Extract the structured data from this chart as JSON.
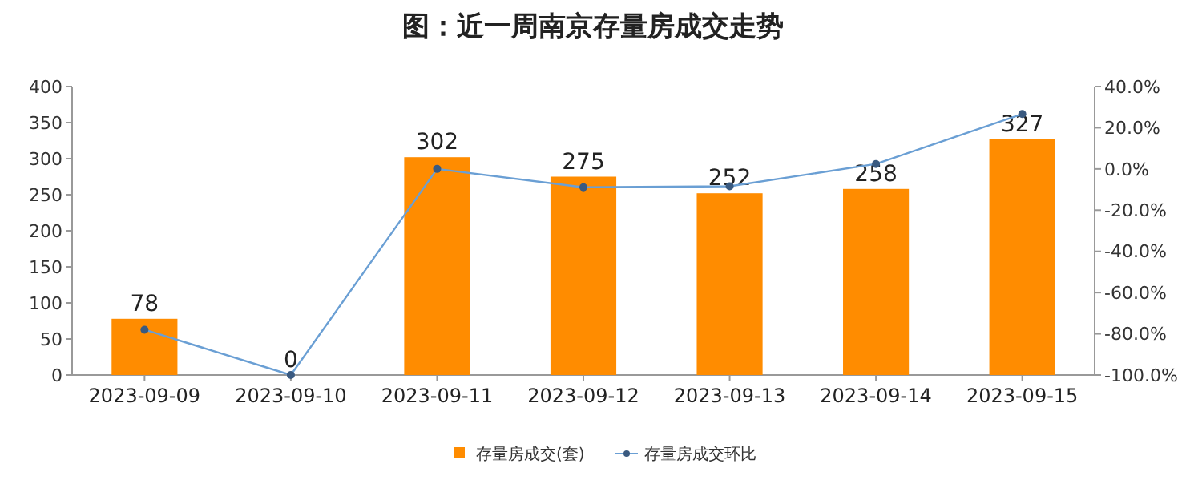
{
  "chart_data": {
    "type": "bar",
    "title": "图：近一周南京存量房成交走势",
    "categories": [
      "2023-09-09",
      "2023-09-10",
      "2023-09-11",
      "2023-09-12",
      "2023-09-13",
      "2023-09-14",
      "2023-09-15"
    ],
    "series": [
      {
        "name": "存量房成交(套)",
        "color": "#ff8c00",
        "values": [
          78,
          0,
          302,
          275,
          252,
          258,
          327
        ],
        "value_labels": [
          "78",
          "0",
          "302",
          "275",
          "252",
          "258",
          "327"
        ]
      },
      {
        "name": "存量房成交环比",
        "type": "line",
        "axis": "y2",
        "color": "#6a9fd4",
        "values": [
          -78,
          -100,
          0,
          -8.9,
          -8.4,
          2.4,
          26.7
        ]
      }
    ],
    "ylim": [
      0,
      400
    ],
    "yticks": [
      0,
      50,
      100,
      150,
      200,
      250,
      300,
      350,
      400
    ],
    "y2lim": [
      -100,
      40
    ],
    "y2ticks": [
      {
        "value": -100,
        "label": "-100.0%"
      },
      {
        "value": -80,
        "label": "-80.0%"
      },
      {
        "value": -60,
        "label": "-60.0%"
      },
      {
        "value": -40,
        "label": "-40.0%"
      },
      {
        "value": -20,
        "label": "-20.0%"
      },
      {
        "value": 0,
        "label": "0.0%"
      },
      {
        "value": 20,
        "label": "20.0%"
      },
      {
        "value": 40,
        "label": "40.0%"
      }
    ],
    "legend": "bottom",
    "marker": "circle",
    "line_style": "solid"
  }
}
